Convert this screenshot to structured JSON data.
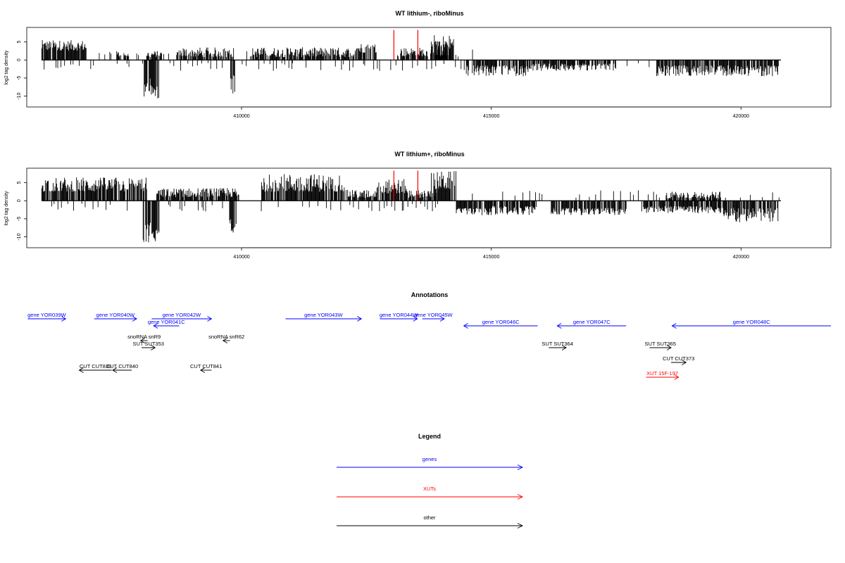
{
  "chart_data": [
    {
      "type": "bar",
      "title": "WT lithium-, riboMinus",
      "ylabel": "log2 tag density",
      "xlim": [
        405700,
        421800
      ],
      "ylim": [
        -13,
        9
      ],
      "x_ticks": [
        410000,
        415000,
        420000
      ],
      "y_ticks": [
        5,
        0,
        -5,
        -10
      ],
      "grid": false,
      "series": [
        {
          "strand": "plus",
          "ranges": [
            [
              406000,
              406900,
              2.6,
              5.5
            ],
            [
              407500,
              407750,
              0.8,
              2.5
            ],
            [
              408100,
              408400,
              0.8,
              2.5
            ],
            [
              408700,
              409850,
              0.8,
              3.5
            ],
            [
              410200,
              412300,
              0.8,
              3.5
            ],
            [
              412300,
              412700,
              2,
              4.6
            ],
            [
              413100,
              414200,
              1,
              3.5
            ],
            [
              413800,
              414250,
              2.5,
              7
            ]
          ],
          "sparse": [
            [
              406900,
              407500
            ],
            [
              407750,
              408100
            ],
            [
              408400,
              408700
            ],
            [
              409850,
              410200
            ],
            [
              414250,
              414650
            ]
          ]
        },
        {
          "strand": "minus",
          "ranges": [
            [
              408050,
              408200,
              -10.5,
              -5
            ],
            [
              408200,
              408350,
              -11,
              -7
            ],
            [
              409780,
              409870,
              -9.5,
              -4
            ],
            [
              414500,
              415800,
              -4.5,
              -1.5
            ],
            [
              415800,
              417500,
              -3,
              -1
            ],
            [
              418300,
              420750,
              -4.5,
              -1.5
            ]
          ],
          "sparse": [
            [
              406000,
              408000
            ],
            [
              408500,
              409700
            ],
            [
              417500,
              418300
            ],
            [
              410000,
              414500
            ]
          ]
        }
      ],
      "highlights": [
        {
          "x": 413050,
          "y": 8.3,
          "color": "#ff0000"
        },
        {
          "x": 413530,
          "y": 8.3,
          "color": "#ff0000"
        }
      ]
    },
    {
      "type": "bar",
      "title": "WT lithium+, riboMinus",
      "ylabel": "log2 tag density",
      "xlim": [
        405700,
        421800
      ],
      "ylim": [
        -13,
        9
      ],
      "x_ticks": [
        410000,
        415000,
        420000
      ],
      "y_ticks": [
        5,
        0,
        -5,
        -10
      ],
      "grid": false,
      "series": [
        {
          "strand": "plus",
          "ranges": [
            [
              406000,
              408100,
              2.5,
              6.5
            ],
            [
              408300,
              409950,
              1,
              3.5
            ],
            [
              410400,
              412100,
              2.5,
              7.5
            ],
            [
              412100,
              412700,
              0.8,
              3
            ],
            [
              412700,
              413300,
              2,
              6
            ],
            [
              413300,
              413900,
              0.8,
              3
            ],
            [
              413800,
              414300,
              3,
              8.2
            ],
            [
              418500,
              419600,
              0.6,
              2.5
            ]
          ],
          "sparse": [
            [
              414300,
              414700
            ],
            [
              415200,
              416000
            ],
            [
              416500,
              418400
            ],
            [
              419600,
              420800
            ]
          ]
        },
        {
          "strand": "minus",
          "ranges": [
            [
              408030,
              408180,
              -12,
              -6
            ],
            [
              408180,
              408350,
              -12,
              -8
            ],
            [
              409760,
              409900,
              -10,
              -5
            ],
            [
              414300,
              415000,
              -4,
              -2
            ],
            [
              415000,
              415900,
              -4,
              -1.5
            ],
            [
              416200,
              417700,
              -4,
              -2
            ],
            [
              418000,
              419600,
              -3.5,
              -1.5
            ],
            [
              419600,
              420750,
              -6,
              -2
            ]
          ],
          "sparse": [
            [
              406000,
              407900
            ],
            [
              408500,
              409700
            ],
            [
              410000,
              414200
            ]
          ]
        }
      ],
      "highlights": [
        {
          "x": 413050,
          "y": 8.3,
          "color": "#ff0000"
        },
        {
          "x": 413530,
          "y": 8.3,
          "color": "#ff0000"
        }
      ]
    }
  ],
  "annotations": {
    "title": "Annotations",
    "items": [
      {
        "label": "gene YOR039W",
        "start": 405720,
        "end": 406480,
        "strand": "+",
        "row": 0,
        "color": "#0000ff"
      },
      {
        "label": "gene YOR040W",
        "start": 407050,
        "end": 407900,
        "strand": "+",
        "row": 0,
        "color": "#0000ff"
      },
      {
        "label": "gene YOR042W",
        "start": 408200,
        "end": 409400,
        "strand": "+",
        "row": 0,
        "color": "#0000ff"
      },
      {
        "label": "gene YOR043W",
        "start": 410880,
        "end": 412400,
        "strand": "+",
        "row": 0,
        "color": "#0000ff"
      },
      {
        "label": "gene YOR044W",
        "start": 412770,
        "end": 413520,
        "strand": "+",
        "row": 0,
        "color": "#0000ff"
      },
      {
        "label": "gene YOR045W",
        "start": 413620,
        "end": 414060,
        "strand": "+",
        "row": 0,
        "color": "#0000ff"
      },
      {
        "label": "gene YOR041C",
        "start": 408240,
        "end": 408750,
        "strand": "-",
        "row": 1,
        "color": "#0000ff"
      },
      {
        "label": "gene YOR046C",
        "start": 414450,
        "end": 415930,
        "strand": "-",
        "row": 1,
        "color": "#0000ff"
      },
      {
        "label": "gene YOR047C",
        "start": 416320,
        "end": 417700,
        "strand": "-",
        "row": 1,
        "color": "#0000ff"
      },
      {
        "label": "gene YOR048C",
        "start": 418620,
        "end": 421800,
        "strand": "-",
        "row": 1,
        "color": "#0000ff"
      },
      {
        "label": "snoRNA snR9",
        "start": 407980,
        "end": 408120,
        "strand": "-",
        "row": 2,
        "color": "#000000"
      },
      {
        "label": "snoRNA snR62",
        "start": 409630,
        "end": 409770,
        "strand": "-",
        "row": 2,
        "color": "#000000"
      },
      {
        "label": "SUT SUT353",
        "start": 408000,
        "end": 408270,
        "strand": "+",
        "row": 3,
        "color": "#000000"
      },
      {
        "label": "SUT SUT364",
        "start": 416150,
        "end": 416500,
        "strand": "+",
        "row": 3,
        "color": "#000000"
      },
      {
        "label": "SUT SUT365",
        "start": 418170,
        "end": 418600,
        "strand": "+",
        "row": 3,
        "color": "#000000"
      },
      {
        "label": "CUT CUT373",
        "start": 418600,
        "end": 418900,
        "strand": "+",
        "row": 4,
        "color": "#000000"
      },
      {
        "label": "CUT CUT839",
        "start": 406750,
        "end": 407400,
        "strand": "-",
        "row": 5,
        "color": "#000000"
      },
      {
        "label": "CUT CUT840",
        "start": 407420,
        "end": 407800,
        "strand": "-",
        "row": 5,
        "color": "#000000"
      },
      {
        "label": "CUT CUT841",
        "start": 409180,
        "end": 409400,
        "strand": "-",
        "row": 5,
        "color": "#000000"
      },
      {
        "label": "XUT 15F-197",
        "start": 418100,
        "end": 418750,
        "strand": "+",
        "row": 6,
        "color": "#ff0000"
      }
    ]
  },
  "legend": {
    "title": "Legend",
    "items": [
      {
        "label": "genes",
        "color": "#0000ff"
      },
      {
        "label": "XUTs",
        "color": "#ff0000"
      },
      {
        "label": "other",
        "color": "#000000"
      }
    ]
  }
}
